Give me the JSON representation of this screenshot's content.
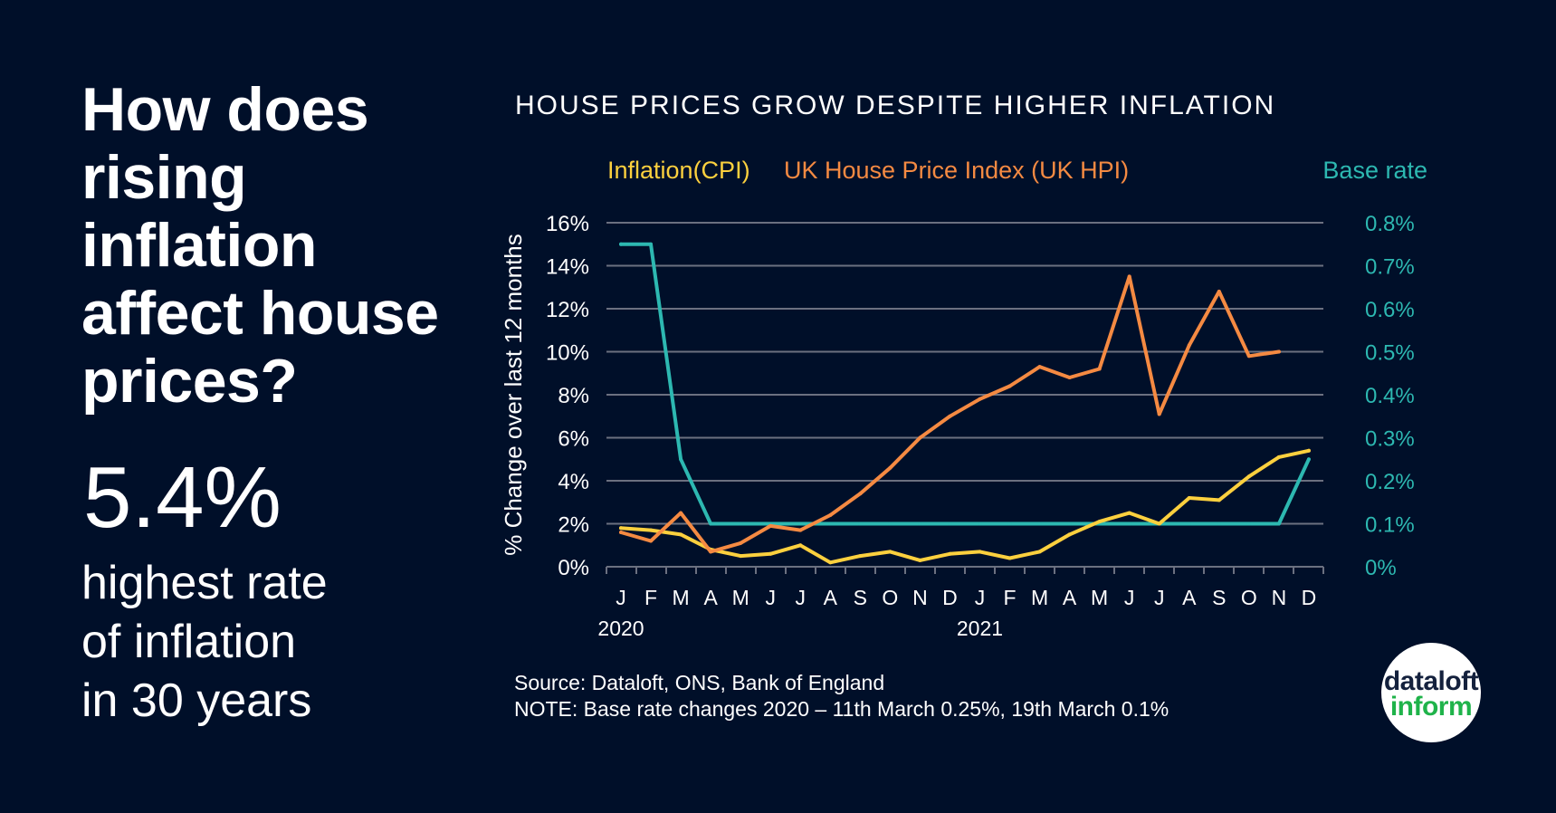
{
  "headline": [
    "How does",
    "rising",
    "inflation",
    "affect house",
    "prices?"
  ],
  "big_stat": "5.4%",
  "stat_caption": [
    "highest rate",
    "of inflation",
    "in 30 years"
  ],
  "source": "Source: Dataloft, ONS, Bank of England",
  "note": "NOTE: Base rate changes 2020 – 11th March 0.25%, 19th March 0.1%",
  "logo": {
    "line1": "dataloft",
    "line2": "inform"
  },
  "colors": {
    "background": "#000f29",
    "cpi": "#fcd03e",
    "hpi": "#f58a42",
    "base_rate": "#2db8b1",
    "grid": "#6b7080"
  },
  "chart_data": {
    "type": "line",
    "title": "HOUSE PRICES GROW DESPITE HIGHER INFLATION",
    "ylabel": "% Change over last 12 months",
    "ylim": [
      0,
      16
    ],
    "y_ticks": [
      "0%",
      "2%",
      "4%",
      "6%",
      "8%",
      "10%",
      "12%",
      "14%",
      "16%"
    ],
    "y2lim": [
      0,
      0.8
    ],
    "y2_ticks": [
      "0%",
      "0.1%",
      "0.2%",
      "0.3%",
      "0.4%",
      "0.5%",
      "0.6%",
      "0.7%",
      "0.8%"
    ],
    "categories": [
      "J",
      "F",
      "M",
      "A",
      "M",
      "J",
      "J",
      "A",
      "S",
      "O",
      "N",
      "D",
      "J",
      "F",
      "M",
      "A",
      "M",
      "J",
      "J",
      "A",
      "S",
      "O",
      "N",
      "D"
    ],
    "years": [
      {
        "label": "2020",
        "index": 0
      },
      {
        "label": "2021",
        "index": 12
      }
    ],
    "grid": true,
    "legend_placement": "top",
    "series": [
      {
        "name": "Inflation(CPI)",
        "axis": "left",
        "color": "#fcd03e",
        "values": [
          1.8,
          1.7,
          1.5,
          0.8,
          0.5,
          0.6,
          1.0,
          0.2,
          0.5,
          0.7,
          0.3,
          0.6,
          0.7,
          0.4,
          0.7,
          1.5,
          2.1,
          2.5,
          2.0,
          3.2,
          3.1,
          4.2,
          5.1,
          5.4
        ]
      },
      {
        "name": "UK House Price Index (UK HPI)",
        "axis": "left",
        "color": "#f58a42",
        "values": [
          1.6,
          1.2,
          2.5,
          0.7,
          1.1,
          1.9,
          1.7,
          2.4,
          3.4,
          4.6,
          6.0,
          7.0,
          7.8,
          8.4,
          9.3,
          8.8,
          9.2,
          13.5,
          7.1,
          10.3,
          12.8,
          9.8,
          10.0,
          null
        ]
      },
      {
        "name": "Base rate",
        "axis": "right",
        "color": "#2db8b1",
        "values": [
          0.75,
          0.75,
          0.25,
          0.1,
          0.1,
          0.1,
          0.1,
          0.1,
          0.1,
          0.1,
          0.1,
          0.1,
          0.1,
          0.1,
          0.1,
          0.1,
          0.1,
          0.1,
          0.1,
          0.1,
          0.1,
          0.1,
          0.1,
          0.25
        ]
      }
    ]
  }
}
